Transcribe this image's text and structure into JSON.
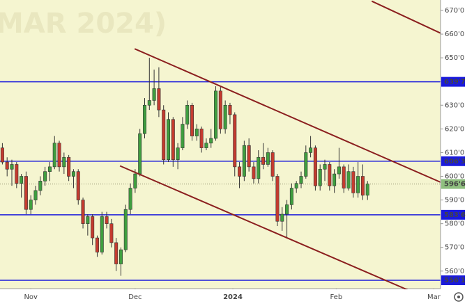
{
  "chart_data": {
    "type": "candlestick",
    "watermark": "MAR 2024)",
    "x": [
      0,
      1,
      2,
      3,
      4,
      5,
      6,
      7,
      8,
      9,
      10,
      11,
      12,
      13,
      14,
      15,
      16,
      17,
      18,
      19,
      20,
      21,
      22,
      23,
      24,
      25,
      26,
      27,
      28,
      29,
      30,
      31,
      32,
      33,
      34,
      35,
      36,
      37,
      38,
      39,
      40,
      41,
      42,
      43,
      44,
      45,
      46,
      47,
      48,
      49,
      50,
      51,
      52,
      53,
      54,
      55,
      56,
      57,
      58,
      59,
      60,
      61,
      62,
      63,
      64,
      65,
      66,
      67,
      68,
      69,
      70,
      71,
      72,
      73,
      74,
      75,
      76,
      77
    ],
    "open": [
      612,
      606,
      603,
      605,
      597,
      600,
      586,
      590,
      594,
      598,
      602,
      604,
      614,
      604,
      608,
      600,
      602,
      590,
      580,
      583,
      574,
      568,
      583,
      580,
      572,
      563,
      569,
      586,
      595,
      601,
      618,
      630,
      632,
      637,
      628,
      607,
      624,
      607,
      612,
      622,
      630,
      617,
      620,
      612,
      614,
      616,
      636,
      620,
      630,
      626,
      604,
      600,
      613,
      604,
      599,
      608,
      605,
      610,
      600,
      581,
      584,
      588,
      595,
      597,
      600,
      610,
      612,
      596,
      603,
      605,
      596,
      601,
      604,
      595,
      602,
      593,
      600,
      592
    ],
    "high": [
      614,
      608,
      607,
      606,
      601,
      602,
      592,
      596,
      600,
      604,
      606,
      617,
      615,
      610,
      609,
      603,
      603,
      591,
      584,
      584,
      575,
      585,
      585,
      582,
      574,
      570,
      588,
      597,
      603,
      620,
      633,
      650,
      645,
      646,
      630,
      627,
      625,
      614,
      625,
      632,
      631,
      622,
      621,
      616,
      620,
      638,
      638,
      632,
      631,
      627,
      606,
      615,
      616,
      606,
      611,
      614,
      612,
      611,
      601,
      587,
      590,
      597,
      598,
      602,
      613,
      617,
      613,
      605,
      607,
      606,
      603,
      612,
      605,
      605,
      604,
      606,
      605,
      598
    ],
    "low": [
      605,
      600,
      596,
      595,
      591,
      584,
      584,
      588,
      592,
      596,
      598,
      603,
      602,
      601,
      598,
      595,
      588,
      578,
      575,
      571,
      566,
      567,
      578,
      570,
      560,
      558,
      568,
      584,
      593,
      600,
      616,
      628,
      630,
      625,
      605,
      606,
      604,
      603,
      611,
      620,
      615,
      615,
      610,
      611,
      612,
      615,
      618,
      618,
      622,
      600,
      595,
      598,
      602,
      597,
      597,
      603,
      604,
      598,
      579,
      577,
      574,
      586,
      593,
      595,
      599,
      608,
      594,
      594,
      598,
      594,
      593,
      599,
      593,
      594,
      591,
      591,
      590,
      590
    ],
    "close": [
      606,
      603,
      605,
      597,
      600,
      586,
      590,
      594,
      598,
      602,
      604,
      614,
      604,
      608,
      600,
      602,
      590,
      580,
      583,
      574,
      568,
      583,
      580,
      572,
      563,
      569,
      586,
      595,
      601,
      618,
      630,
      632,
      637,
      628,
      607,
      624,
      607,
      612,
      622,
      630,
      617,
      620,
      612,
      614,
      616,
      636,
      620,
      630,
      626,
      604,
      600,
      613,
      604,
      599,
      608,
      605,
      610,
      600,
      581,
      584,
      588,
      595,
      597,
      600,
      610,
      612,
      596,
      603,
      605,
      596,
      601,
      604,
      595,
      602,
      593,
      600,
      592,
      596.75
    ],
    "up_color": "#3f9e3f",
    "down_color": "#c43b2f",
    "xlim": [
      -0.5,
      92.4
    ],
    "xticks": [
      {
        "value": 6,
        "label": "Nov"
      },
      {
        "value": 28,
        "label": "Dec"
      },
      {
        "value": 48.6,
        "label": "2024"
      },
      {
        "value": 70.4,
        "label": "Feb"
      },
      {
        "value": 91,
        "label": "Mar"
      }
    ],
    "ylim": [
      552.6,
      674.4
    ],
    "yticks": [
      {
        "value": 560,
        "label": "560'0"
      },
      {
        "value": 570,
        "label": "570'0"
      },
      {
        "value": 580,
        "label": "580'0"
      },
      {
        "value": 590,
        "label": "590'0"
      },
      {
        "value": 600,
        "label": "600'0"
      },
      {
        "value": 610,
        "label": "610'0"
      },
      {
        "value": 620,
        "label": "620'0"
      },
      {
        "value": 630,
        "label": "630'0"
      },
      {
        "value": 640,
        "label": "640'0"
      },
      {
        "value": 650,
        "label": "650'0"
      },
      {
        "value": 660,
        "label": "660'0"
      },
      {
        "value": 670,
        "label": "670'0"
      }
    ],
    "levels": [
      {
        "value": 639.875,
        "label": "639'7"
      },
      {
        "value": 606.375,
        "label": "606'3"
      },
      {
        "value": 583.75,
        "label": "583'6"
      },
      {
        "value": 556.125,
        "label": "556'1"
      }
    ],
    "level_color": "#1a1adc",
    "last_price": {
      "value": 596.75,
      "label": "596'6"
    },
    "last_color": "#8fbf7f",
    "trend_lines": [
      {
        "x": [
          77.9,
          92.4
        ],
        "y": [
          673.9,
          660.4
        ]
      },
      {
        "x": [
          27.9,
          92.4
        ],
        "y": [
          653.8,
          597.5
        ]
      },
      {
        "x": [
          24.8,
          87.4
        ],
        "y": [
          604.4,
          550.4
        ]
      }
    ],
    "trend_color": "#8b1f1f"
  }
}
